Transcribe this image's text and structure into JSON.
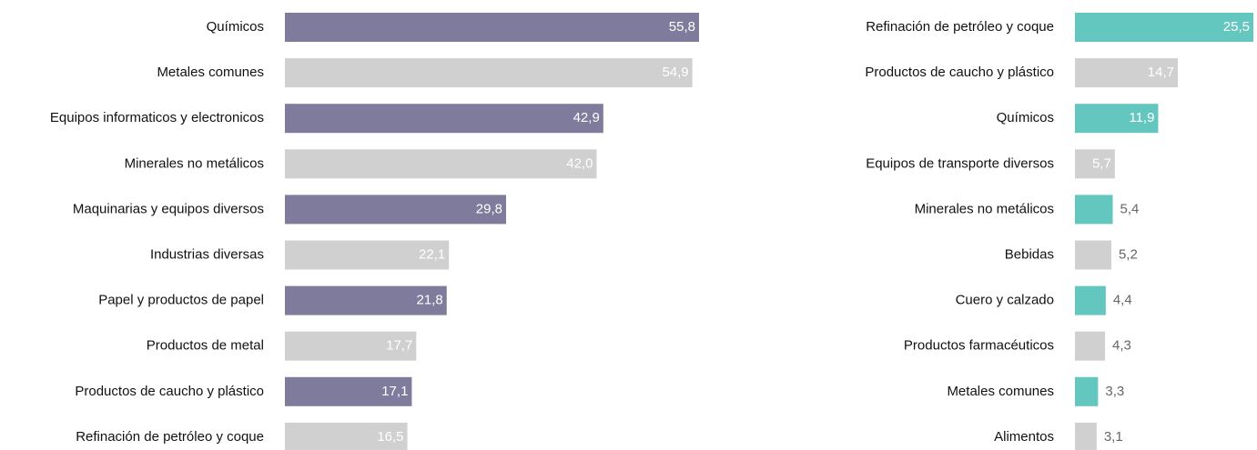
{
  "chart_data": [
    {
      "type": "barh",
      "categories": [
        "Químicos",
        "Metales comunes",
        "Equipos informaticos y electronicos",
        "Minerales no metálicos",
        "Maquinarias y equipos diversos",
        "Industrias diversas",
        "Papel y productos de papel",
        "Productos de metal",
        "Productos de caucho y plástico",
        "Refinación de petróleo y coque"
      ],
      "values": [
        55.8,
        54.9,
        42.9,
        42.0,
        29.8,
        22.1,
        21.8,
        17.7,
        17.1,
        16.5
      ],
      "value_labels": [
        "55,8",
        "54,9",
        "42,9",
        "42,0",
        "29,8",
        "22,1",
        "21,8",
        "17,7",
        "17,1",
        "16,5"
      ],
      "colors": [
        "#7f7b9c",
        "#d0d0d0",
        "#7f7b9c",
        "#d0d0d0",
        "#7f7b9c",
        "#d0d0d0",
        "#7f7b9c",
        "#d0d0d0",
        "#7f7b9c",
        "#d0d0d0"
      ]
    },
    {
      "type": "barh",
      "categories": [
        "Refinación de petróleo y coque",
        "Productos de caucho y plástico",
        "Químicos",
        "Equipos de transporte diversos",
        "Minerales no metálicos",
        "Bebidas",
        "Cuero y calzado",
        "Productos farmacéuticos",
        "Metales comunes",
        "Alimentos"
      ],
      "values": [
        25.5,
        14.7,
        11.9,
        5.7,
        5.4,
        5.2,
        4.4,
        4.3,
        3.3,
        3.1
      ],
      "value_labels": [
        "25,5",
        "14,7",
        "11,9",
        "5,7",
        "5,4",
        "5,2",
        "4,4",
        "4,3",
        "3,3",
        "3,1"
      ],
      "colors": [
        "#63c7c0",
        "#d0d0d0",
        "#63c7c0",
        "#d0d0d0",
        "#63c7c0",
        "#d0d0d0",
        "#63c7c0",
        "#d0d0d0",
        "#63c7c0",
        "#d0d0d0"
      ]
    }
  ]
}
